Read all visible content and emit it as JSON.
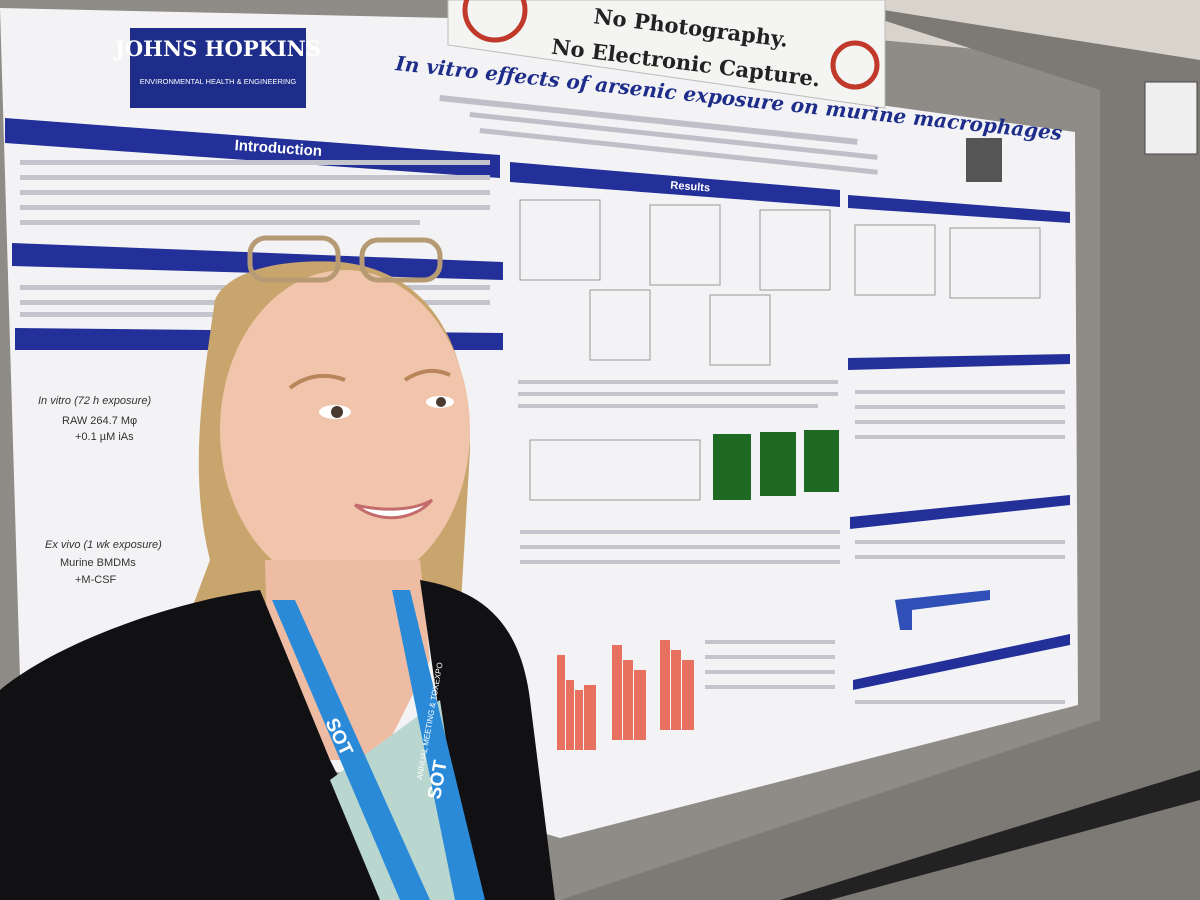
{
  "sign": {
    "lines": [
      "No Photography.",
      "No Electronic Capture."
    ]
  },
  "poster": {
    "logo": {
      "name": "JOHNS HOPKINS",
      "department": "ENVIRONMENTAL HEALTH & ENGINEERING"
    },
    "title": "In vitro effects of arsenic exposure on murine macrophages",
    "sections": [
      "Introduction",
      "Results"
    ],
    "methods": {
      "in_vitro": {
        "heading": "In vitro (72 h exposure)",
        "lines": [
          "RAW 264.7 Mφ",
          "+0.1 µM iAs"
        ]
      },
      "ex_vivo": {
        "heading": "Ex vivo (1 wk exposure)",
        "lines": [
          "Murine BMDMs",
          "+M-CSF"
        ]
      }
    }
  },
  "lanyard": {
    "brand": "SOT",
    "event": "ANNUAL MEETING & TOXEXPO"
  }
}
